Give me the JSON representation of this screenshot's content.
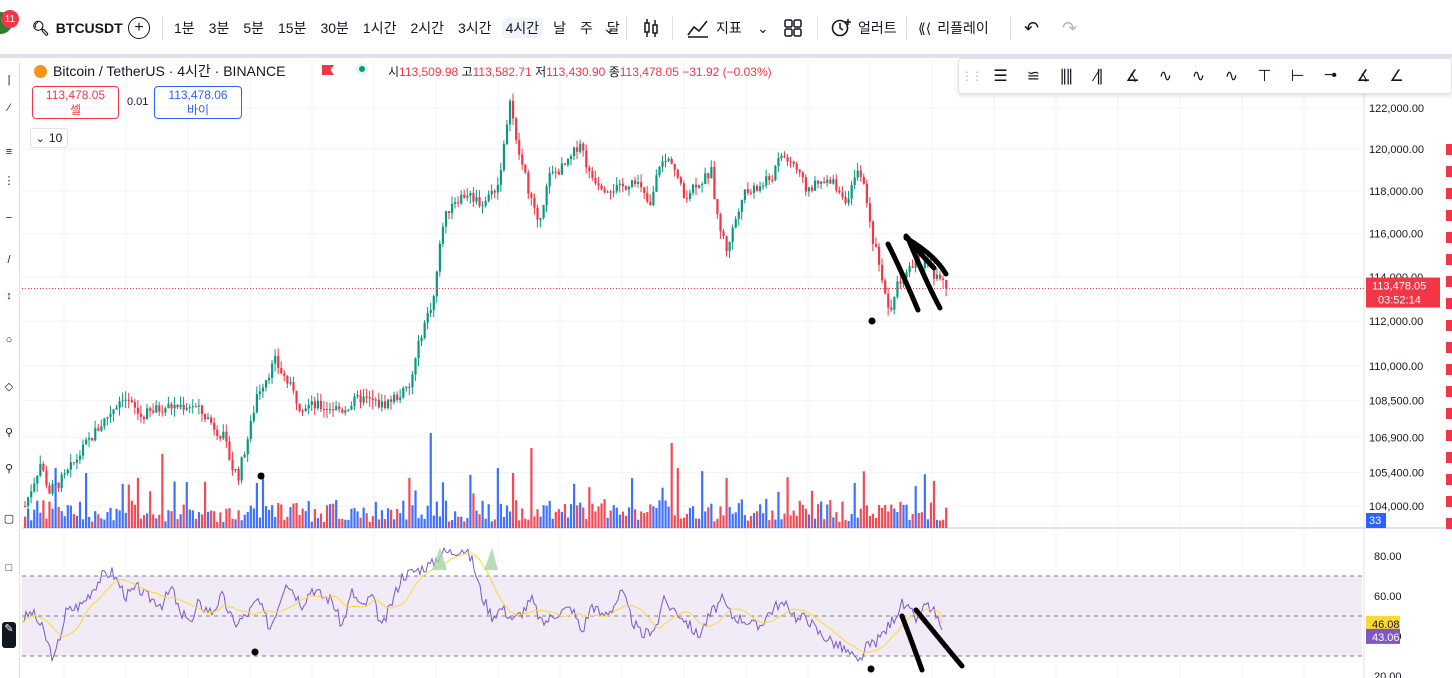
{
  "toolbar": {
    "notification_count": "11",
    "symbol": "BTCUSDT",
    "intervals": [
      "1분",
      "3분",
      "5분",
      "15분",
      "30분",
      "1시간",
      "2시간",
      "3시간",
      "4시간",
      "날",
      "주",
      "달"
    ],
    "active_interval": "4시간",
    "indicators_label": "지표",
    "alert_label": "얼러트",
    "replay_label": "리플레이"
  },
  "legend": {
    "title": "Bitcoin / TetherUS · 4시간 · BINANCE",
    "open_label": "시",
    "open": "113,509.98",
    "high_label": "고",
    "high": "113,582.71",
    "low_label": "저",
    "low": "113,430.90",
    "close_label": "종",
    "close": "113,478.05",
    "change": "−31.92 (−0.03%)"
  },
  "trade": {
    "sell_price": "113,478.05",
    "sell_label": "셀",
    "spread": "0.01",
    "buy_price": "113,478.06",
    "buy_label": "바이"
  },
  "volume_length": "10",
  "chart_data": {
    "type": "candlestick",
    "price_axis": {
      "ticks": [
        {
          "value": 104000,
          "label": "104,000.00"
        },
        {
          "value": 105400,
          "label": "105,400.00"
        },
        {
          "value": 106900,
          "label": "106,900.00"
        },
        {
          "value": 108500,
          "label": "108,500.00"
        },
        {
          "value": 110000,
          "label": "110,000.00"
        },
        {
          "value": 112000,
          "label": "112,000.00"
        },
        {
          "value": 114000,
          "label": "114,000.00"
        },
        {
          "value": 116000,
          "label": "116,000.00"
        },
        {
          "value": 118000,
          "label": "118,000.00"
        },
        {
          "value": 120000,
          "label": "120,000.00"
        },
        {
          "value": 122000,
          "label": "122,000.00"
        }
      ],
      "scale": "log"
    },
    "last_price": {
      "value": 113478.05,
      "label": "113,478.05",
      "countdown": "03:52:14"
    },
    "volume_badge": "33",
    "price_keypoints": [
      [
        0,
        104000
      ],
      [
        5,
        105800
      ],
      [
        8,
        104600
      ],
      [
        13,
        105200
      ],
      [
        20,
        106600
      ],
      [
        28,
        108000
      ],
      [
        32,
        108700
      ],
      [
        38,
        107800
      ],
      [
        45,
        108200
      ],
      [
        55,
        108300
      ],
      [
        60,
        107700
      ],
      [
        65,
        106900
      ],
      [
        68,
        105600
      ],
      [
        70,
        105300
      ],
      [
        74,
        107400
      ],
      [
        76,
        108800
      ],
      [
        82,
        110200
      ],
      [
        86,
        109300
      ],
      [
        90,
        108300
      ],
      [
        100,
        108200
      ],
      [
        104,
        108100
      ],
      [
        110,
        108600
      ],
      [
        117,
        108300
      ],
      [
        126,
        109000
      ],
      [
        130,
        111500
      ],
      [
        134,
        113100
      ],
      [
        137,
        116500
      ],
      [
        140,
        117500
      ],
      [
        145,
        117900
      ],
      [
        150,
        117400
      ],
      [
        155,
        118300
      ],
      [
        158,
        121000
      ],
      [
        159,
        122600
      ],
      [
        161,
        120300
      ],
      [
        166,
        117600
      ],
      [
        168,
        116400
      ],
      [
        172,
        118700
      ],
      [
        178,
        119300
      ],
      [
        182,
        120400
      ],
      [
        185,
        118800
      ],
      [
        190,
        118200
      ],
      [
        195,
        118100
      ],
      [
        200,
        118600
      ],
      [
        205,
        117200
      ],
      [
        208,
        119300
      ],
      [
        212,
        119500
      ],
      [
        216,
        117700
      ],
      [
        220,
        118400
      ],
      [
        222,
        118500
      ],
      [
        225,
        118900
      ],
      [
        227,
        116700
      ],
      [
        230,
        115300
      ],
      [
        232,
        116200
      ],
      [
        235,
        117800
      ],
      [
        240,
        118100
      ],
      [
        245,
        118700
      ],
      [
        248,
        119700
      ],
      [
        252,
        119300
      ],
      [
        256,
        118100
      ],
      [
        260,
        118300
      ],
      [
        265,
        118400
      ],
      [
        270,
        117500
      ],
      [
        272,
        118600
      ],
      [
        274,
        118900
      ],
      [
        276,
        117400
      ],
      [
        278,
        115700
      ],
      [
        280,
        114800
      ],
      [
        282,
        113100
      ],
      [
        284,
        112300
      ],
      [
        286,
        113800
      ],
      [
        290,
        114300
      ],
      [
        292,
        115000
      ],
      [
        294,
        114200
      ],
      [
        296,
        114900
      ],
      [
        298,
        113800
      ],
      [
        300,
        114100
      ],
      [
        302,
        113478
      ]
    ],
    "volume_spikes": [
      [
        10,
        0.6
      ],
      [
        20,
        0.55
      ],
      [
        37,
        0.5
      ],
      [
        45,
        0.7
      ],
      [
        76,
        0.45
      ],
      [
        78,
        0.55
      ],
      [
        126,
        0.5
      ],
      [
        133,
        0.95
      ],
      [
        155,
        0.6
      ],
      [
        160,
        0.55
      ],
      [
        166,
        0.8
      ],
      [
        212,
        0.85
      ],
      [
        214,
        0.6
      ],
      [
        230,
        0.5
      ],
      [
        272,
        0.45
      ],
      [
        292,
        0.42
      ]
    ],
    "rsi_panel": {
      "ticks": [
        {
          "value": 20,
          "label": "20.00"
        },
        {
          "value": 40,
          "label": "40.00"
        },
        {
          "value": 60,
          "label": "60.00"
        },
        {
          "value": 80,
          "label": "80.00"
        }
      ],
      "upper_band": 70,
      "lower_band": 30,
      "mid_band": 50,
      "rsi_last": {
        "value": 43.06,
        "label": "43.06"
      },
      "rsi_ma_last": {
        "value": 46.08,
        "label": "46.08"
      },
      "rsi_keypoints": [
        [
          0,
          48
        ],
        [
          5,
          52
        ],
        [
          10,
          44
        ],
        [
          16,
          28
        ],
        [
          22,
          52
        ],
        [
          30,
          56
        ],
        [
          40,
          70
        ],
        [
          45,
          72
        ],
        [
          52,
          60
        ],
        [
          58,
          64
        ],
        [
          62,
          60
        ],
        [
          70,
          56
        ],
        [
          75,
          64
        ],
        [
          80,
          48
        ],
        [
          82,
          52
        ],
        [
          85,
          46
        ],
        [
          88,
          56
        ],
        [
          95,
          52
        ],
        [
          100,
          60
        ],
        [
          106,
          46
        ],
        [
          112,
          50
        ],
        [
          118,
          58
        ],
        [
          124,
          44
        ],
        [
          128,
          55
        ],
        [
          132,
          68
        ],
        [
          136,
          62
        ],
        [
          140,
          56
        ],
        [
          145,
          64
        ],
        [
          150,
          60
        ],
        [
          155,
          58
        ],
        [
          160,
          45
        ],
        [
          165,
          62
        ],
        [
          170,
          54
        ],
        [
          175,
          60
        ],
        [
          180,
          44
        ],
        [
          190,
          70
        ],
        [
          200,
          74
        ],
        [
          205,
          76
        ],
        [
          210,
          82
        ],
        [
          215,
          82
        ],
        [
          220,
          84
        ],
        [
          222,
          82
        ],
        [
          225,
          78
        ],
        [
          230,
          60
        ],
        [
          235,
          50
        ],
        [
          240,
          54
        ],
        [
          246,
          48
        ],
        [
          250,
          52
        ],
        [
          255,
          58
        ],
        [
          260,
          46
        ],
        [
          268,
          52
        ],
        [
          275,
          54
        ],
        [
          280,
          42
        ],
        [
          285,
          56
        ],
        [
          290,
          50
        ],
        [
          295,
          54
        ],
        [
          300,
          62
        ],
        [
          305,
          48
        ],
        [
          310,
          40
        ],
        [
          318,
          46
        ],
        [
          320,
          58
        ],
        [
          330,
          50
        ],
        [
          338,
          40
        ],
        [
          345,
          52
        ],
        [
          350,
          58
        ],
        [
          355,
          50
        ],
        [
          362,
          48
        ],
        [
          368,
          44
        ],
        [
          372,
          50
        ],
        [
          378,
          56
        ],
        [
          384,
          54
        ],
        [
          388,
          48
        ],
        [
          392,
          50
        ],
        [
          398,
          42
        ],
        [
          404,
          38
        ],
        [
          410,
          34
        ],
        [
          415,
          30
        ],
        [
          418,
          26
        ],
        [
          422,
          34
        ],
        [
          428,
          38
        ],
        [
          434,
          46
        ],
        [
          440,
          56
        ],
        [
          444,
          52
        ],
        [
          448,
          48
        ],
        [
          452,
          56
        ],
        [
          456,
          52
        ],
        [
          460,
          43
        ]
      ]
    }
  },
  "colors": {
    "up": "#089981",
    "down": "#f23645",
    "volume_up": "#2962ff",
    "rsi": "#7e57c2",
    "rsi_ma": "#fdd835",
    "rsi_band_fill": "#ede7f6",
    "annotation": "#000000"
  },
  "icons": [
    "search-icon",
    "add-symbol-icon",
    "bar-type-icon",
    "indicators-icon",
    "layout-icon",
    "alert-icon",
    "replay-icon",
    "undo-icon",
    "redo-icon"
  ]
}
